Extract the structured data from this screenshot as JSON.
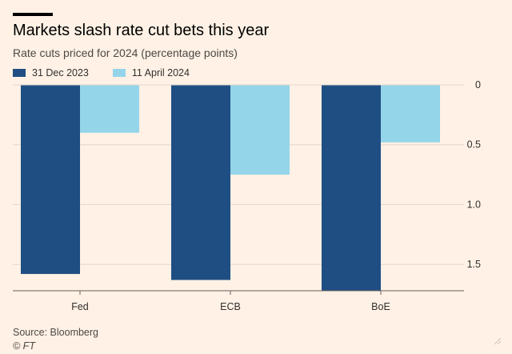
{
  "header": {
    "title": "Markets slash rate cut bets this year",
    "subtitle": "Rate cuts priced for 2024 (percentage points)"
  },
  "footer": {
    "source": "Source: Bloomberg",
    "credit": "© FT"
  },
  "colors": {
    "series1": "#1f4e83",
    "series2": "#94d5ea",
    "grid": "#e2d7cc",
    "axis": "#66605c",
    "text": "#33302e"
  },
  "chart_data": {
    "type": "bar",
    "title": "Markets slash rate cut bets this year",
    "subtitle": "Rate cuts priced for 2024 (percentage points)",
    "categories": [
      "Fed",
      "ECB",
      "BoE"
    ],
    "series": [
      {
        "name": "31 Dec 2023",
        "values": [
          1.58,
          1.63,
          1.72
        ]
      },
      {
        "name": "11 April 2024",
        "values": [
          0.4,
          0.75,
          0.48
        ]
      }
    ],
    "ylim": [
      0,
      1.72
    ],
    "y_inverted": true,
    "yticks": [
      0,
      0.5,
      1.0,
      1.5
    ],
    "ytick_labels": [
      "0",
      "0.5",
      "1.0",
      "1.5"
    ],
    "y_axis_side": "right",
    "legend_position": "top-left",
    "grid": true,
    "xlabel": "",
    "ylabel": ""
  }
}
